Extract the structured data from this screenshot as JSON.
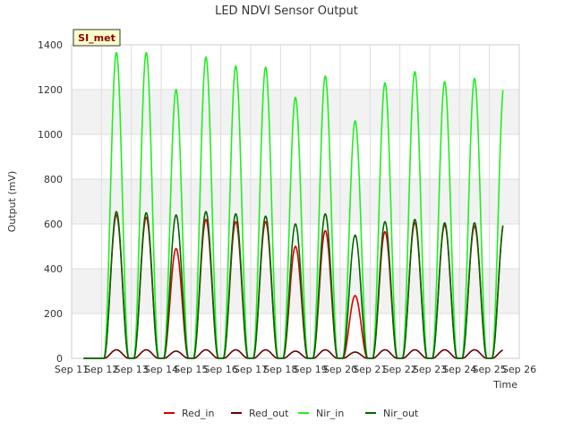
{
  "chart_data": {
    "type": "line",
    "title": "LED NDVI Sensor Output",
    "xlabel": "Time",
    "ylabel": "Output (mV)",
    "ylim": [
      0,
      1400
    ],
    "xlim": [
      11,
      26
    ],
    "y_ticks": [
      0,
      200,
      400,
      600,
      800,
      1000,
      1200,
      1400
    ],
    "x_ticks": [
      {
        "value": 11,
        "label": "Sep 11"
      },
      {
        "value": 12,
        "label": "Sep 12"
      },
      {
        "value": 13,
        "label": "Sep 13"
      },
      {
        "value": 14,
        "label": "Sep 14"
      },
      {
        "value": 15,
        "label": "Sep 15"
      },
      {
        "value": 16,
        "label": "Sep 16"
      },
      {
        "value": 17,
        "label": "Sep 17"
      },
      {
        "value": 18,
        "label": "Sep 18"
      },
      {
        "value": 19,
        "label": "Sep 19"
      },
      {
        "value": 20,
        "label": "Sep 20"
      },
      {
        "value": 21,
        "label": "Sep 21"
      },
      {
        "value": 22,
        "label": "Sep 22"
      },
      {
        "value": 23,
        "label": "Sep 23"
      },
      {
        "value": 24,
        "label": "Sep 24"
      },
      {
        "value": 25,
        "label": "Sep 25"
      },
      {
        "value": 26,
        "label": "Sep 26"
      }
    ],
    "grid": true,
    "legend_position": "bottom",
    "day_start": 11.4,
    "day_end": 25.45,
    "peak_offset": 0.5,
    "peak_halfwidth": 0.42,
    "series": [
      {
        "name": "Red_in",
        "color": "#dd0000",
        "daily_peaks": [
          640,
          630,
          490,
          620,
          610,
          610,
          500,
          570,
          280,
          565,
          605,
          595,
          590,
          610
        ]
      },
      {
        "name": "Red_out",
        "color": "#660000",
        "daily_peaks": [
          38,
          38,
          32,
          38,
          38,
          38,
          32,
          38,
          28,
          38,
          38,
          38,
          38,
          38
        ]
      },
      {
        "name": "Nir_in",
        "color": "#22ee22",
        "daily_peaks": [
          1365,
          1365,
          1200,
          1345,
          1305,
          1300,
          1165,
          1260,
          1060,
          1230,
          1280,
          1235,
          1250,
          1240
        ]
      },
      {
        "name": "Nir_out",
        "color": "#006600",
        "daily_peaks": [
          655,
          650,
          640,
          655,
          645,
          635,
          600,
          645,
          550,
          610,
          620,
          605,
          605,
          615
        ]
      }
    ]
  },
  "site_badge": "SI_met"
}
